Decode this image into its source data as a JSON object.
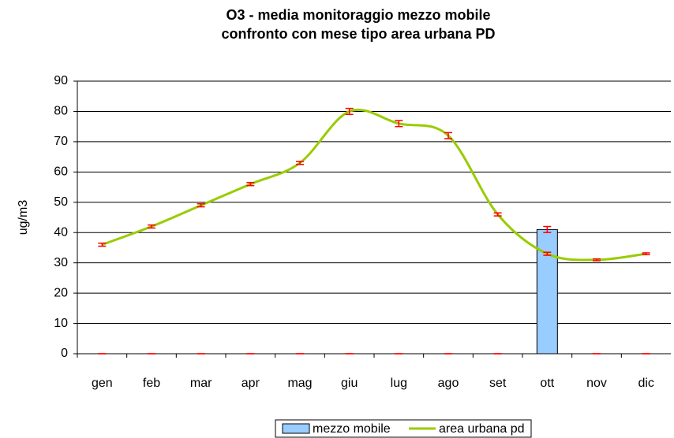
{
  "chart_data": {
    "type": "bar-line",
    "title": [
      "O3 - media monitoraggio mezzo mobile",
      "confronto con mese tipo area urbana PD"
    ],
    "y_label": "ug/m3",
    "categories": [
      "gen",
      "feb",
      "mar",
      "apr",
      "mag",
      "giu",
      "lug",
      "ago",
      "set",
      "ott",
      "nov",
      "dic"
    ],
    "series": [
      {
        "name": "mezzo mobile",
        "type": "bar",
        "color": "#99ccff",
        "values": [
          0,
          0,
          0,
          0,
          0,
          0,
          0,
          0,
          0,
          41,
          0,
          0
        ],
        "errors": [
          0,
          0,
          0,
          0,
          0,
          0,
          0,
          0,
          0,
          1,
          0,
          0
        ]
      },
      {
        "name": "area urbana pd",
        "type": "line",
        "color": "#99cc00",
        "values": [
          36,
          42,
          49,
          56,
          63,
          80,
          76,
          72,
          46,
          33,
          31,
          33
        ],
        "errors": [
          0.5,
          0.5,
          0.5,
          0.5,
          0.5,
          1,
          1,
          1,
          0.5,
          0.5,
          0.3,
          0.3
        ]
      }
    ],
    "error_color": "#ff0000",
    "ylim": [
      0,
      90
    ],
    "yticks": [
      0,
      10,
      20,
      30,
      40,
      50,
      60,
      70,
      80,
      90
    ],
    "grid": true,
    "legend": "bottom"
  }
}
